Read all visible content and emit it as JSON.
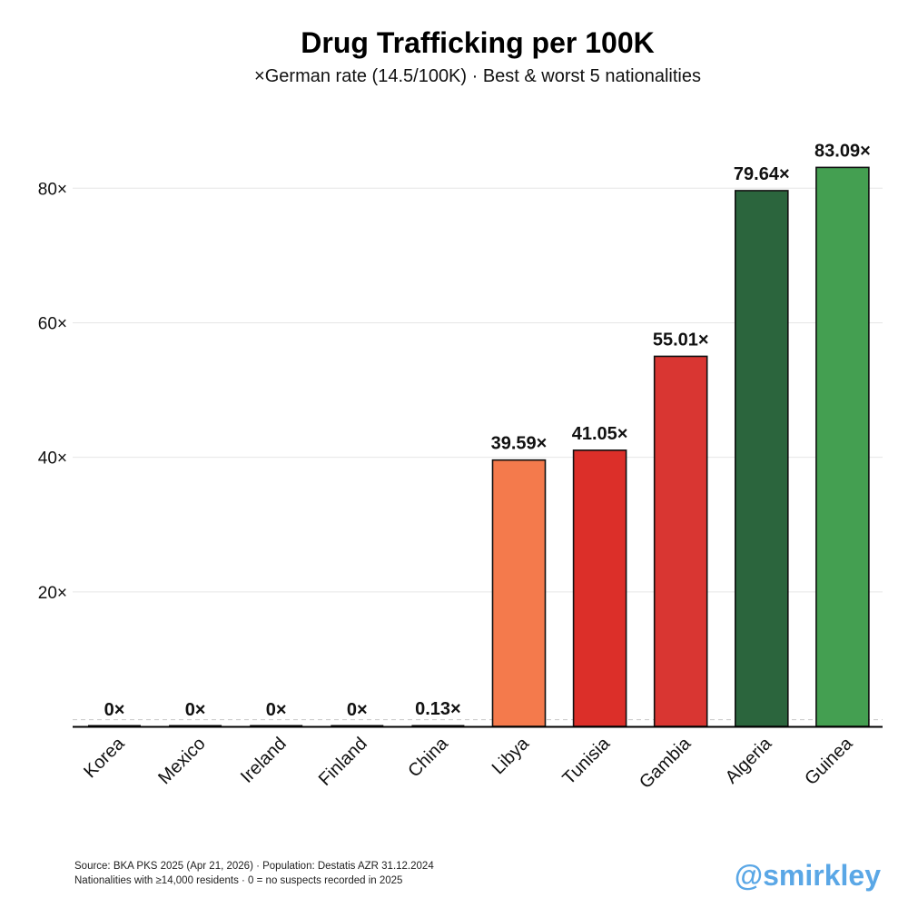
{
  "chart_data": {
    "type": "bar",
    "title": "Drug Trafficking per 100K",
    "subtitle": "×German rate (14.5/100K) · Best & worst 5 nationalities",
    "categories": [
      "Korea",
      "Mexico",
      "Ireland",
      "Finland",
      "China",
      "Libya",
      "Tunisia",
      "Gambia",
      "Algeria",
      "Guinea"
    ],
    "values": [
      0,
      0,
      0,
      0,
      0.13,
      39.59,
      41.05,
      55.01,
      79.64,
      83.09
    ],
    "value_labels": [
      "0×",
      "0×",
      "0×",
      "0×",
      "0.13×",
      "39.59×",
      "41.05×",
      "55.01×",
      "79.64×",
      "83.09×"
    ],
    "colors": [
      "#000000",
      "#000000",
      "#000000",
      "#000000",
      "#000000",
      "#f47a4c",
      "#dc2f29",
      "#d93632",
      "#2b653d",
      "#449f51"
    ],
    "yticks": [
      20,
      40,
      60,
      80
    ],
    "ytick_labels": [
      "20×",
      "40×",
      "60×",
      "80×"
    ],
    "ylim": [
      0,
      88
    ],
    "reference_line": 1,
    "grid": true,
    "xlabel": "",
    "ylabel": ""
  },
  "footer": {
    "source_line1": "Source: BKA PKS 2025 (Apr 21, 2026) · Population: Destatis AZR 31.12.2024",
    "source_line2": "Nationalities with ≥14,000 residents · 0 = no suspects recorded in 2025",
    "handle": "@smirkley"
  }
}
